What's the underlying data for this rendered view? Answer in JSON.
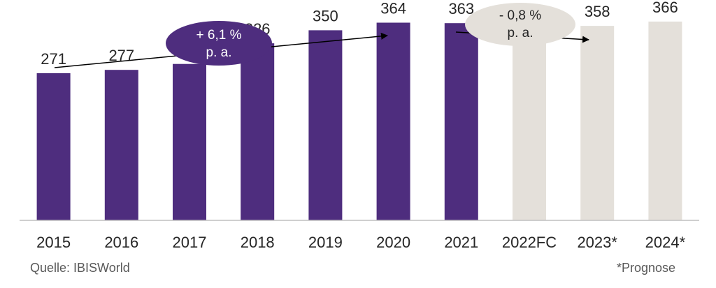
{
  "chart_data": {
    "type": "bar",
    "categories": [
      "2015",
      "2016",
      "2017",
      "2018",
      "2019",
      "2020",
      "2021",
      "2022FC",
      "2023*",
      "2024*"
    ],
    "values": [
      271,
      277,
      288,
      326,
      350,
      364,
      363,
      360,
      358,
      366
    ],
    "forecast": [
      false,
      false,
      false,
      false,
      false,
      false,
      false,
      true,
      true,
      true
    ],
    "ylim": [
      0,
      380
    ],
    "grid": false,
    "colors": {
      "actual": "#4e2d7e",
      "forecast": "#e4e0da",
      "axis": "#bfbfbf",
      "text": "#262626"
    },
    "annotations": [
      {
        "line1": "+ 6,1 %",
        "line2": "p. a.",
        "fill": "#4e2d7e",
        "text_color": "#ffffff"
      },
      {
        "line1": "- 0,8 %",
        "line2": "p. a.",
        "fill": "#e4e0da",
        "text_color": "#262626"
      }
    ]
  },
  "footer": {
    "source": "Quelle: IBISWorld",
    "note": "*Prognose"
  }
}
